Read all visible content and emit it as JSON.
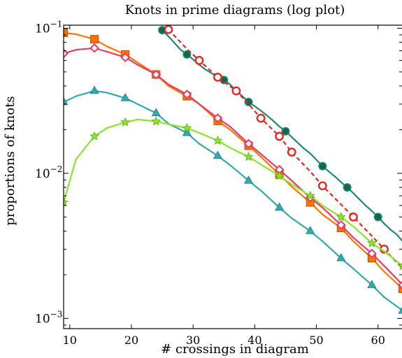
{
  "chart_data": {
    "type": "line",
    "title": "Knots in prime diagrams (log plot)",
    "xlabel": "# crossings in diagram",
    "ylabel": "proportions of knots",
    "xlim": [
      9,
      64
    ],
    "ylim": [
      0.00085,
      0.105
    ],
    "yscale": "log",
    "x_ticks": [
      10,
      20,
      30,
      40,
      50,
      60
    ],
    "y_ticks": [
      {
        "value": 0.1,
        "base": "10",
        "exp": "−1"
      },
      {
        "value": 0.01,
        "base": "10",
        "exp": "−2"
      },
      {
        "value": 0.001,
        "base": "10",
        "exp": "−3"
      }
    ],
    "grid": false,
    "series": [
      {
        "color": "#1e8a72",
        "marker": "circle-filled",
        "dashed": false,
        "x": [
          25,
          26,
          27,
          28,
          29,
          30,
          31,
          32,
          33,
          34,
          35,
          36,
          37,
          38,
          39,
          40,
          41,
          42,
          43,
          44,
          45,
          46,
          47,
          48,
          49,
          50,
          51,
          52,
          53,
          54,
          55,
          56,
          57,
          58,
          59,
          60,
          61,
          62,
          63,
          64
        ],
        "y": [
          0.097,
          0.088,
          0.079,
          0.071,
          0.066,
          0.061,
          0.056,
          0.052,
          0.049,
          0.046,
          0.044,
          0.041,
          0.037,
          0.034,
          0.031,
          0.029,
          0.027,
          0.025,
          0.023,
          0.021,
          0.0195,
          0.0178,
          0.0162,
          0.0148,
          0.0137,
          0.0124,
          0.0112,
          0.0103,
          0.0095,
          0.0087,
          0.008,
          0.0073,
          0.0066,
          0.006,
          0.0055,
          0.005,
          0.0045,
          0.0041,
          0.0038,
          0.0034
        ],
        "marker_x": [
          25,
          29,
          35,
          39,
          45,
          51,
          55,
          60
        ]
      },
      {
        "color": "#e8241c",
        "marker": "circle-open",
        "dashed": true,
        "x": [
          26,
          29,
          31,
          34,
          37,
          39,
          41,
          44,
          46,
          49,
          51,
          54,
          56,
          59,
          61,
          64
        ],
        "y": [
          0.098,
          0.072,
          0.06,
          0.046,
          0.037,
          0.03,
          0.024,
          0.018,
          0.014,
          0.0103,
          0.0082,
          0.0061,
          0.005,
          0.0037,
          0.003,
          0.0022
        ],
        "marker_x": [
          26,
          31,
          34,
          37,
          41,
          44,
          46,
          51,
          56,
          61
        ]
      },
      {
        "color": "#ff7400",
        "marker": "square",
        "dashed": false,
        "x": [
          9,
          11,
          14,
          16,
          19,
          21,
          24,
          26,
          29,
          31,
          34,
          36,
          39,
          41,
          44,
          46,
          49,
          51,
          54,
          56,
          59,
          61,
          64
        ],
        "y": [
          0.093,
          0.091,
          0.084,
          0.075,
          0.066,
          0.058,
          0.048,
          0.04,
          0.034,
          0.03,
          0.023,
          0.02,
          0.0155,
          0.013,
          0.0098,
          0.0081,
          0.0063,
          0.0052,
          0.0042,
          0.0034,
          0.0026,
          0.0021,
          0.0016
        ],
        "marker_x": [
          9,
          14,
          19,
          24,
          29,
          34,
          39,
          44,
          49,
          54,
          59,
          64
        ]
      },
      {
        "color": "#ec3a66",
        "marker": "diamond-open",
        "dashed": false,
        "x": [
          9,
          11,
          14,
          16,
          19,
          21,
          24,
          26,
          29,
          31,
          34,
          36,
          39,
          41,
          44,
          46,
          49,
          51,
          54,
          56,
          59,
          61,
          64
        ],
        "y": [
          0.067,
          0.071,
          0.073,
          0.069,
          0.063,
          0.056,
          0.048,
          0.041,
          0.035,
          0.03,
          0.024,
          0.021,
          0.016,
          0.0136,
          0.0106,
          0.0089,
          0.0068,
          0.0058,
          0.0044,
          0.0036,
          0.0028,
          0.0023,
          0.0017
        ],
        "marker_x": [
          9,
          14,
          19,
          24,
          29,
          34,
          39,
          44,
          49,
          54,
          59,
          64
        ]
      },
      {
        "color": "#30aaae",
        "marker": "triangle",
        "dashed": false,
        "x": [
          9,
          11,
          14,
          16,
          19,
          21,
          24,
          26,
          29,
          31,
          34,
          36,
          39,
          41,
          44,
          46,
          49,
          51,
          54,
          56,
          59,
          61,
          64
        ],
        "y": [
          0.031,
          0.034,
          0.037,
          0.036,
          0.033,
          0.03,
          0.026,
          0.022,
          0.019,
          0.016,
          0.0132,
          0.0114,
          0.0089,
          0.0076,
          0.0058,
          0.0049,
          0.004,
          0.0034,
          0.0026,
          0.0022,
          0.0017,
          0.0014,
          0.00113
        ],
        "marker_x": [
          9,
          14,
          19,
          24,
          29,
          34,
          39,
          44,
          49,
          54,
          59,
          64
        ]
      },
      {
        "color": "#88e62a",
        "marker": "star",
        "dashed": false,
        "x": [
          9,
          11,
          14,
          16,
          19,
          21,
          24,
          26,
          29,
          31,
          34,
          36,
          39,
          41,
          44,
          46,
          49,
          51,
          54,
          56,
          59,
          61,
          64
        ],
        "y": [
          0.0063,
          0.0125,
          0.018,
          0.0205,
          0.0225,
          0.0235,
          0.0228,
          0.0218,
          0.0205,
          0.019,
          0.0168,
          0.015,
          0.013,
          0.0115,
          0.0096,
          0.0084,
          0.007,
          0.006,
          0.005,
          0.0043,
          0.0033,
          0.0029,
          0.0023
        ],
        "marker_x": [
          9,
          14,
          19,
          24,
          29,
          34,
          39,
          44,
          49,
          54,
          59,
          64
        ]
      }
    ]
  }
}
